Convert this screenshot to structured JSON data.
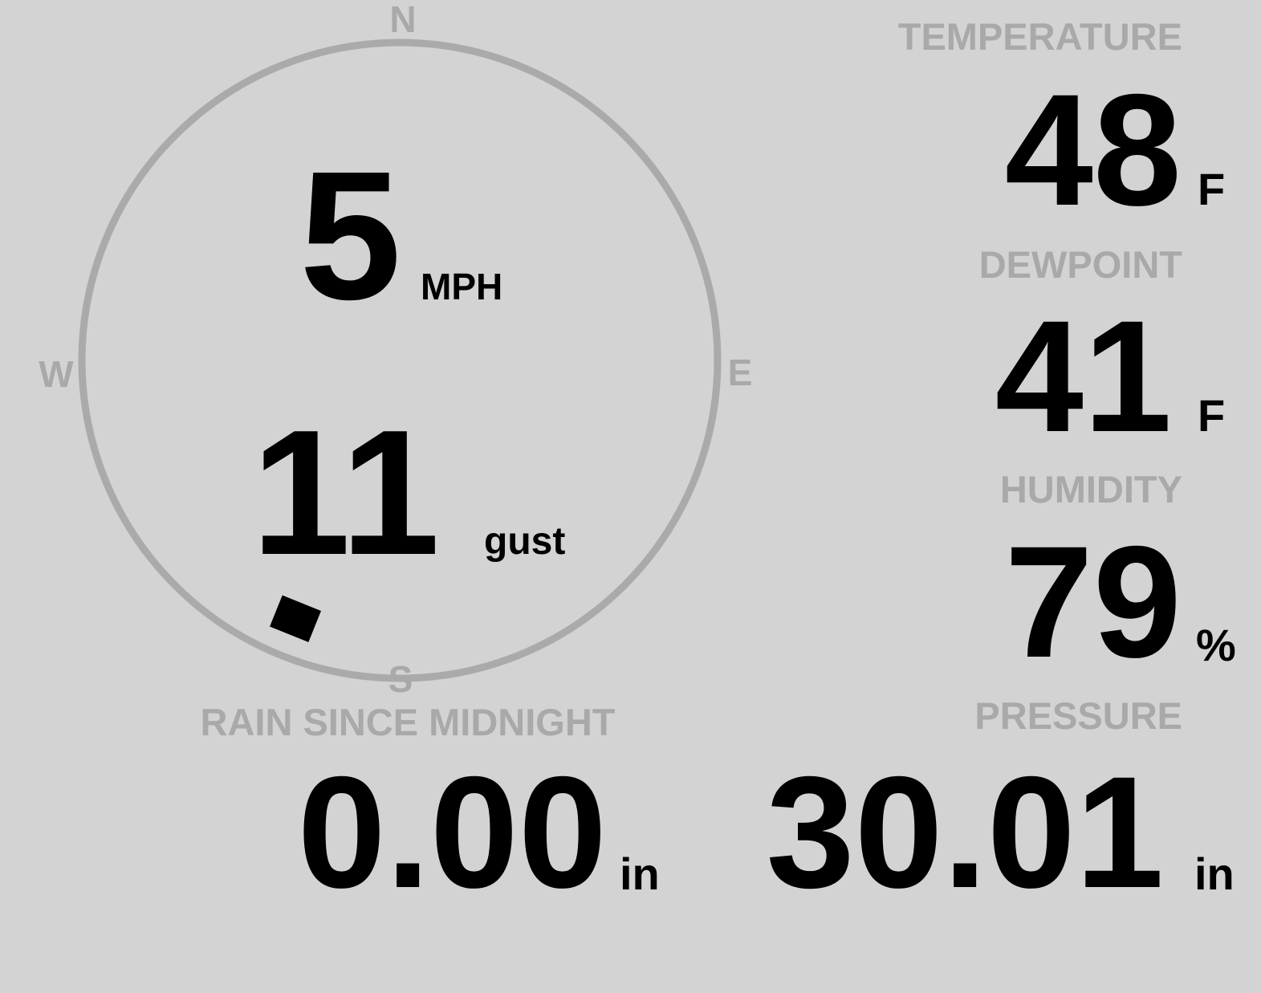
{
  "colors": {
    "background": "#d3d3d3",
    "label": "#a9a9a9",
    "value": "#000000",
    "ring": "#aaaaaa"
  },
  "wind": {
    "compass": {
      "n": "N",
      "e": "E",
      "s": "S",
      "w": "W"
    },
    "direction_deg": 202,
    "speed": "5",
    "speed_unit": "MPH",
    "gust": "11",
    "gust_unit": "gust"
  },
  "temperature": {
    "label": "TEMPERATURE",
    "value": "48",
    "unit": "F"
  },
  "dewpoint": {
    "label": "DEWPOINT",
    "value": "41",
    "unit": "F"
  },
  "humidity": {
    "label": "HUMIDITY",
    "value": "79",
    "unit": "%"
  },
  "rain": {
    "label": "RAIN SINCE MIDNIGHT",
    "value": "0.00",
    "unit": "in"
  },
  "pressure": {
    "label": "PRESSURE",
    "value": "30.01",
    "unit": "in"
  }
}
